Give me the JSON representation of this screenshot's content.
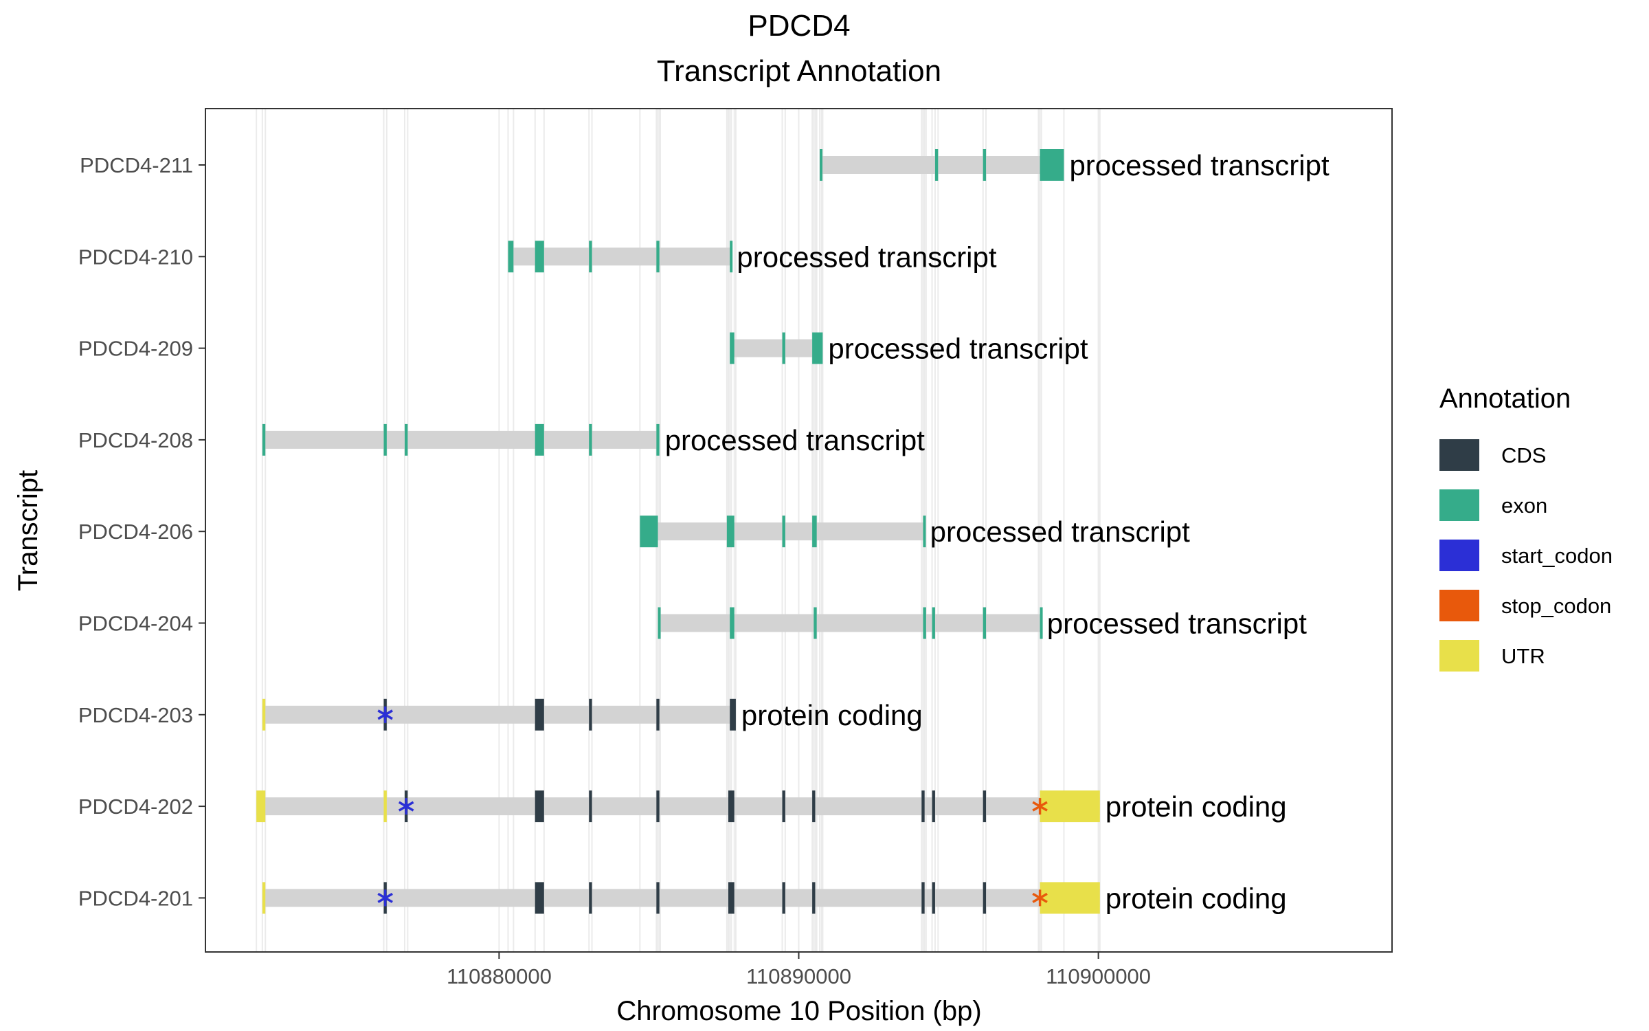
{
  "chart_data": {
    "type": "gene-track",
    "title": "PDCD4",
    "subtitle": "Transcript Annotation",
    "xlabel": "Chromosome 10 Position (bp)",
    "ylabel": "Transcript",
    "xlim": [
      110870200,
      110909800
    ],
    "xticks": [
      110880000,
      110890000,
      110900000
    ],
    "xtick_labels": [
      "110880000",
      "110890000",
      "110900000"
    ],
    "grid": true,
    "legend_position": "right",
    "legend": {
      "title": "Annotation",
      "items": [
        {
          "name": "CDS",
          "color": "#2f3d47"
        },
        {
          "name": "exon",
          "color": "#35ac8a"
        },
        {
          "name": "start_codon",
          "color": "#2b2fd6"
        },
        {
          "name": "stop_codon",
          "color": "#e8590c"
        },
        {
          "name": "UTR",
          "color": "#e8e04a"
        }
      ]
    },
    "intron_color": "#d3d3d3",
    "transcripts": [
      {
        "name": "PDCD4-211",
        "biotype": "processed transcript",
        "start": 110890700,
        "end": 110898850,
        "features": [
          {
            "type": "exon",
            "start": 110890700,
            "end": 110890760
          },
          {
            "type": "exon",
            "start": 110894550,
            "end": 110894650
          },
          {
            "type": "exon",
            "start": 110896150,
            "end": 110896250
          },
          {
            "type": "exon",
            "start": 110898050,
            "end": 110898850
          }
        ]
      },
      {
        "name": "PDCD4-210",
        "biotype": "processed transcript",
        "start": 110880300,
        "end": 110887750,
        "features": [
          {
            "type": "exon",
            "start": 110880300,
            "end": 110880480
          },
          {
            "type": "exon",
            "start": 110881200,
            "end": 110881500
          },
          {
            "type": "exon",
            "start": 110883000,
            "end": 110883100
          },
          {
            "type": "exon",
            "start": 110885250,
            "end": 110885350
          },
          {
            "type": "exon",
            "start": 110887700,
            "end": 110887750
          }
        ]
      },
      {
        "name": "PDCD4-209",
        "biotype": "processed transcript",
        "start": 110887700,
        "end": 110890800,
        "features": [
          {
            "type": "exon",
            "start": 110887700,
            "end": 110887850
          },
          {
            "type": "exon",
            "start": 110889450,
            "end": 110889550
          },
          {
            "type": "exon",
            "start": 110890450,
            "end": 110890800
          }
        ]
      },
      {
        "name": "PDCD4-208",
        "biotype": "processed transcript",
        "start": 110872100,
        "end": 110885350,
        "features": [
          {
            "type": "exon",
            "start": 110872100,
            "end": 110872200
          },
          {
            "type": "exon",
            "start": 110876150,
            "end": 110876250
          },
          {
            "type": "exon",
            "start": 110876850,
            "end": 110876950
          },
          {
            "type": "exon",
            "start": 110881200,
            "end": 110881500
          },
          {
            "type": "exon",
            "start": 110883000,
            "end": 110883100
          },
          {
            "type": "exon",
            "start": 110885250,
            "end": 110885350
          }
        ]
      },
      {
        "name": "PDCD4-206",
        "biotype": "processed transcript",
        "start": 110884700,
        "end": 110894200,
        "features": [
          {
            "type": "exon",
            "start": 110884700,
            "end": 110885300
          },
          {
            "type": "exon",
            "start": 110887600,
            "end": 110887850
          },
          {
            "type": "exon",
            "start": 110889450,
            "end": 110889550
          },
          {
            "type": "exon",
            "start": 110890450,
            "end": 110890600
          },
          {
            "type": "exon",
            "start": 110894150,
            "end": 110894200
          }
        ]
      },
      {
        "name": "PDCD4-204",
        "biotype": "processed transcript",
        "start": 110885300,
        "end": 110898100,
        "features": [
          {
            "type": "exon",
            "start": 110885300,
            "end": 110885380
          },
          {
            "type": "exon",
            "start": 110887700,
            "end": 110887850
          },
          {
            "type": "exon",
            "start": 110890500,
            "end": 110890600
          },
          {
            "type": "exon",
            "start": 110894150,
            "end": 110894250
          },
          {
            "type": "exon",
            "start": 110894450,
            "end": 110894550
          },
          {
            "type": "exon",
            "start": 110896150,
            "end": 110896250
          },
          {
            "type": "exon",
            "start": 110898050,
            "end": 110898100
          }
        ]
      },
      {
        "name": "PDCD4-203",
        "biotype": "protein coding",
        "start": 110872100,
        "end": 110887900,
        "features": [
          {
            "type": "UTR",
            "start": 110872100,
            "end": 110872200
          },
          {
            "type": "CDS",
            "start": 110876150,
            "end": 110876250
          },
          {
            "type": "CDS",
            "start": 110881200,
            "end": 110881500
          },
          {
            "type": "CDS",
            "start": 110883000,
            "end": 110883100
          },
          {
            "type": "CDS",
            "start": 110885250,
            "end": 110885350
          },
          {
            "type": "CDS",
            "start": 110887700,
            "end": 110887900
          },
          {
            "type": "start_codon",
            "start": 110876150,
            "end": 110876250
          }
        ]
      },
      {
        "name": "PDCD4-202",
        "biotype": "protein coding",
        "start": 110871900,
        "end": 110900050,
        "features": [
          {
            "type": "UTR",
            "start": 110871900,
            "end": 110872200
          },
          {
            "type": "UTR",
            "start": 110876150,
            "end": 110876250
          },
          {
            "type": "CDS",
            "start": 110876850,
            "end": 110876950
          },
          {
            "type": "CDS",
            "start": 110881200,
            "end": 110881500
          },
          {
            "type": "CDS",
            "start": 110883000,
            "end": 110883100
          },
          {
            "type": "CDS",
            "start": 110885250,
            "end": 110885350
          },
          {
            "type": "CDS",
            "start": 110887650,
            "end": 110887850
          },
          {
            "type": "CDS",
            "start": 110889450,
            "end": 110889550
          },
          {
            "type": "CDS",
            "start": 110890450,
            "end": 110890550
          },
          {
            "type": "CDS",
            "start": 110894100,
            "end": 110894200
          },
          {
            "type": "CDS",
            "start": 110894450,
            "end": 110894550
          },
          {
            "type": "CDS",
            "start": 110896150,
            "end": 110896250
          },
          {
            "type": "UTR",
            "start": 110898050,
            "end": 110900050
          },
          {
            "type": "start_codon",
            "start": 110876850,
            "end": 110876950
          },
          {
            "type": "stop_codon",
            "start": 110898000,
            "end": 110898100
          }
        ]
      },
      {
        "name": "PDCD4-201",
        "biotype": "protein coding",
        "start": 110872100,
        "end": 110900050,
        "features": [
          {
            "type": "UTR",
            "start": 110872100,
            "end": 110872200
          },
          {
            "type": "CDS",
            "start": 110876150,
            "end": 110876250
          },
          {
            "type": "CDS",
            "start": 110881200,
            "end": 110881500
          },
          {
            "type": "CDS",
            "start": 110883000,
            "end": 110883100
          },
          {
            "type": "CDS",
            "start": 110885250,
            "end": 110885350
          },
          {
            "type": "CDS",
            "start": 110887650,
            "end": 110887850
          },
          {
            "type": "CDS",
            "start": 110889450,
            "end": 110889550
          },
          {
            "type": "CDS",
            "start": 110890450,
            "end": 110890550
          },
          {
            "type": "CDS",
            "start": 110894100,
            "end": 110894200
          },
          {
            "type": "CDS",
            "start": 110894450,
            "end": 110894550
          },
          {
            "type": "CDS",
            "start": 110896150,
            "end": 110896250
          },
          {
            "type": "UTR",
            "start": 110898050,
            "end": 110900050
          },
          {
            "type": "start_codon",
            "start": 110876150,
            "end": 110876250
          },
          {
            "type": "stop_codon",
            "start": 110898000,
            "end": 110898100
          }
        ]
      }
    ]
  }
}
